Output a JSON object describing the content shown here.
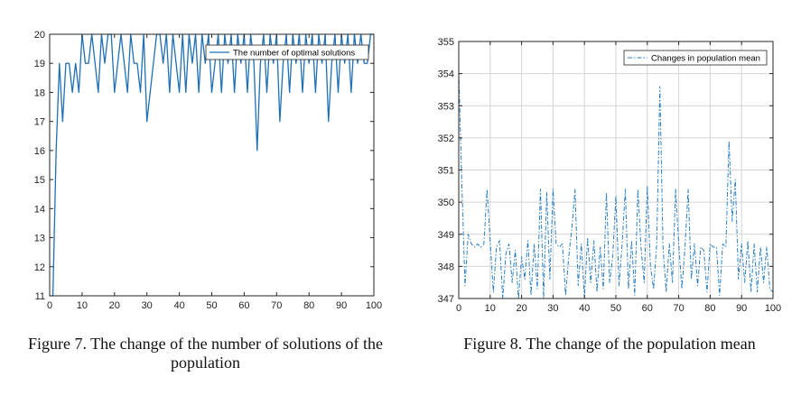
{
  "captions": {
    "fig7": "Figure 7. The change of the number of solutions of the population",
    "fig8": "Figure 8. The change of the population mean"
  },
  "chart_data": [
    {
      "type": "line",
      "title": "",
      "xlabel": "",
      "ylabel": "",
      "xlim": [
        0,
        100
      ],
      "ylim": [
        11,
        20
      ],
      "grid": false,
      "legend": "top-right",
      "xticks": [
        0,
        10,
        20,
        30,
        40,
        50,
        60,
        70,
        80,
        90,
        100
      ],
      "yticks": [
        11,
        12,
        13,
        14,
        15,
        16,
        17,
        18,
        19,
        20
      ],
      "color": "#1f6fb4",
      "series": [
        {
          "name": "The number of optimal solutions",
          "x": [
            0,
            1,
            2,
            3,
            4,
            5,
            6,
            7,
            8,
            9,
            10,
            11,
            12,
            13,
            14,
            15,
            16,
            17,
            18,
            19,
            20,
            21,
            22,
            23,
            24,
            25,
            26,
            27,
            28,
            29,
            30,
            31,
            32,
            33,
            34,
            35,
            36,
            37,
            38,
            39,
            40,
            41,
            42,
            43,
            44,
            45,
            46,
            47,
            48,
            49,
            50,
            51,
            52,
            53,
            54,
            55,
            56,
            57,
            58,
            59,
            60,
            61,
            62,
            63,
            64,
            65,
            66,
            67,
            68,
            69,
            70,
            71,
            72,
            73,
            74,
            75,
            76,
            77,
            78,
            79,
            80,
            81,
            82,
            83,
            84,
            85,
            86,
            87,
            88,
            89,
            90,
            91,
            92,
            93,
            94,
            95,
            96,
            97,
            98,
            99,
            100
          ],
          "y": [
            11,
            11,
            16,
            19,
            17,
            19,
            19,
            18,
            19,
            18,
            20,
            19,
            19,
            20,
            19,
            18,
            20,
            19,
            20,
            20,
            18,
            19,
            20,
            19,
            18,
            20,
            19,
            19,
            18,
            20,
            17,
            18,
            19,
            20,
            20,
            19,
            20,
            18,
            20,
            19,
            18,
            20,
            18,
            20,
            19,
            20,
            18,
            20,
            19,
            20,
            18,
            19,
            20,
            18,
            20,
            19,
            20,
            18,
            20,
            19,
            20,
            18,
            20,
            19,
            16,
            19,
            20,
            18,
            20,
            19,
            20,
            17,
            19,
            20,
            18,
            20,
            19,
            20,
            18,
            20,
            19,
            20,
            18,
            20,
            19,
            20,
            17,
            19,
            20,
            18,
            20,
            19,
            20,
            18,
            20,
            19,
            20,
            19,
            19,
            20,
            20
          ]
        }
      ]
    },
    {
      "type": "line",
      "title": "",
      "xlabel": "",
      "ylabel": "",
      "xlim": [
        0,
        100
      ],
      "ylim": [
        347,
        355
      ],
      "grid": true,
      "legend": "top-right",
      "xticks": [
        0,
        10,
        20,
        30,
        40,
        50,
        60,
        70,
        80,
        90,
        100
      ],
      "yticks": [
        347,
        348,
        349,
        350,
        351,
        352,
        353,
        354,
        355
      ],
      "color": "#2a7fc1",
      "series": [
        {
          "name": "Changes in population mean",
          "x": [
            0,
            1,
            2,
            3,
            4,
            5,
            6,
            7,
            8,
            9,
            10,
            11,
            12,
            13,
            14,
            15,
            16,
            17,
            18,
            19,
            20,
            21,
            22,
            23,
            24,
            25,
            26,
            27,
            28,
            29,
            30,
            31,
            32,
            33,
            34,
            35,
            36,
            37,
            38,
            39,
            40,
            41,
            42,
            43,
            44,
            45,
            46,
            47,
            48,
            49,
            50,
            51,
            52,
            53,
            54,
            55,
            56,
            57,
            58,
            59,
            60,
            61,
            62,
            63,
            64,
            65,
            66,
            67,
            68,
            69,
            70,
            71,
            72,
            73,
            74,
            75,
            76,
            77,
            78,
            79,
            80,
            81,
            82,
            83,
            84,
            85,
            86,
            87,
            88,
            89,
            90,
            91,
            92,
            93,
            94,
            95,
            96,
            97,
            98,
            99,
            100
          ],
          "y": [
            354.1,
            350.5,
            347.4,
            349.0,
            348.7,
            348.6,
            348.7,
            348.6,
            348.7,
            350.4,
            348.8,
            347.2,
            348.6,
            348.8,
            347.0,
            348.4,
            348.7,
            347.5,
            348.5,
            347.0,
            348.3,
            347.6,
            348.8,
            347.1,
            348.7,
            347.3,
            350.4,
            347.0,
            350.3,
            347.6,
            350.4,
            348.7,
            348.6,
            348.7,
            347.1,
            348.3,
            349.2,
            350.4,
            347.4,
            348.7,
            347.0,
            348.9,
            347.5,
            348.8,
            347.2,
            348.6,
            347.3,
            350.3,
            347.5,
            348.3,
            350.2,
            347.4,
            348.7,
            350.4,
            347.3,
            348.8,
            347.1,
            350.4,
            348.6,
            347.5,
            350.5,
            348.0,
            347.3,
            348.7,
            353.6,
            348.6,
            347.2,
            348.7,
            347.5,
            350.4,
            348.7,
            347.3,
            348.6,
            350.4,
            347.6,
            348.7,
            347.4,
            348.6,
            348.5,
            347.2,
            348.7,
            348.6,
            348.6,
            347.1,
            348.7,
            348.6,
            351.9,
            349.4,
            350.7,
            347.6,
            348.7,
            347.5,
            348.8,
            347.2,
            348.7,
            347.2,
            348.6,
            347.5,
            348.6,
            347.3,
            347.2
          ]
        }
      ]
    }
  ]
}
